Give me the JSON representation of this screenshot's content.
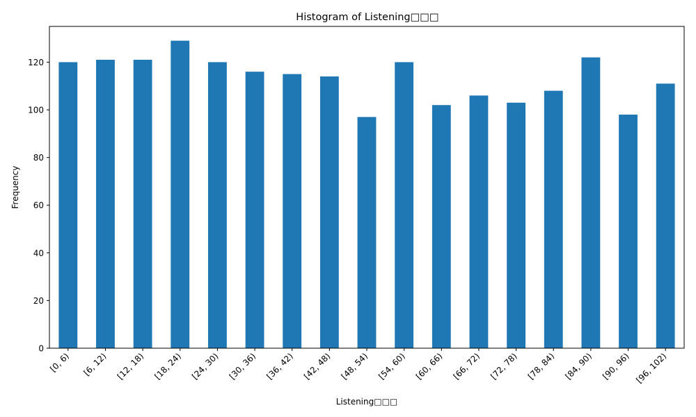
{
  "chart_data": {
    "type": "bar",
    "title": "Histogram of Listening□□□",
    "xlabel": "Listening□□□",
    "ylabel": "Frequency",
    "categories": [
      "[0, 6)",
      "[6, 12)",
      "[12, 18)",
      "[18, 24)",
      "[24, 30)",
      "[30, 36)",
      "[36, 42)",
      "[42, 48)",
      "[48, 54)",
      "[54, 60)",
      "[60, 66)",
      "[66, 72)",
      "[72, 78)",
      "[78, 84)",
      "[84, 90)",
      "[90, 96)",
      "[96, 102)"
    ],
    "values": [
      120,
      121,
      121,
      129,
      120,
      116,
      115,
      114,
      97,
      120,
      102,
      106,
      103,
      108,
      122,
      98,
      111
    ],
    "ylim": [
      0,
      135
    ],
    "yticks": [
      0,
      20,
      40,
      60,
      80,
      100,
      120
    ],
    "grid": false,
    "legend": "none",
    "bar_color": "#1f77b4"
  }
}
